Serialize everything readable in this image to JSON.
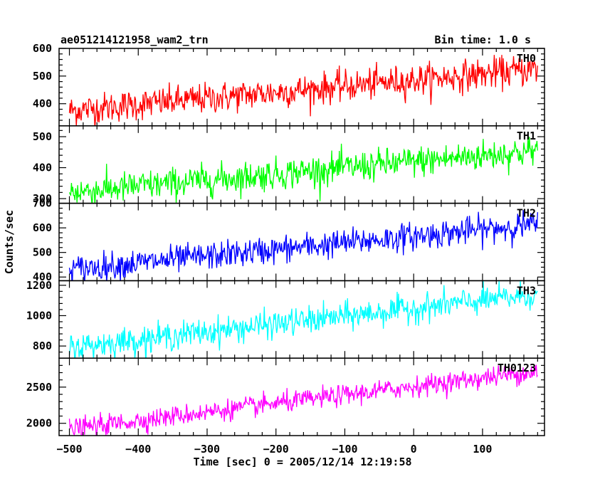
{
  "header": {
    "title": "ae051214121958_wam2_trn",
    "bin_time": "Bin time: 1.0 s"
  },
  "chart_data": {
    "type": "line",
    "title": "ae051214121958_wam2_trn",
    "xlabel": "Time [sec] 0 = 2005/12/14 12:19:58",
    "ylabel": "Counts/sec",
    "xlim": [
      -515,
      190
    ],
    "x_ticks": [
      -500,
      -400,
      -300,
      -200,
      -100,
      0,
      100
    ],
    "x_tick_labels": [
      "−500",
      "−400",
      "−300",
      "−200",
      "−100",
      "0",
      "100"
    ],
    "x_range": [
      -500,
      180
    ],
    "bin_time_s": 1.0,
    "panels": [
      {
        "name": "TH0",
        "color": "#ff0000",
        "ylim": [
          320,
          600
        ],
        "yticks": [
          400,
          500,
          600
        ],
        "trend": [
          375,
          525
        ],
        "noise": 28
      },
      {
        "name": "TH1",
        "color": "#00ff00",
        "ylim": [
          285,
          535
        ],
        "yticks": [
          300,
          400,
          500
        ],
        "trend": [
          320,
          455
        ],
        "noise": 25
      },
      {
        "name": "TH2",
        "color": "#0000ff",
        "ylim": [
          385,
          700
        ],
        "yticks": [
          400,
          500,
          600,
          700
        ],
        "trend": [
          430,
          615
        ],
        "noise": 28
      },
      {
        "name": "TH3",
        "color": "#00ffff",
        "ylim": [
          720,
          1230
        ],
        "yticks": [
          800,
          1000,
          1200
        ],
        "trend": [
          790,
          1140
        ],
        "noise": 45
      },
      {
        "name": "TH0123",
        "color": "#ff00ff",
        "ylim": [
          1830,
          2900
        ],
        "yticks": [
          2000,
          2500
        ],
        "trend": [
          1920,
          2720
        ],
        "noise": 70
      }
    ]
  }
}
